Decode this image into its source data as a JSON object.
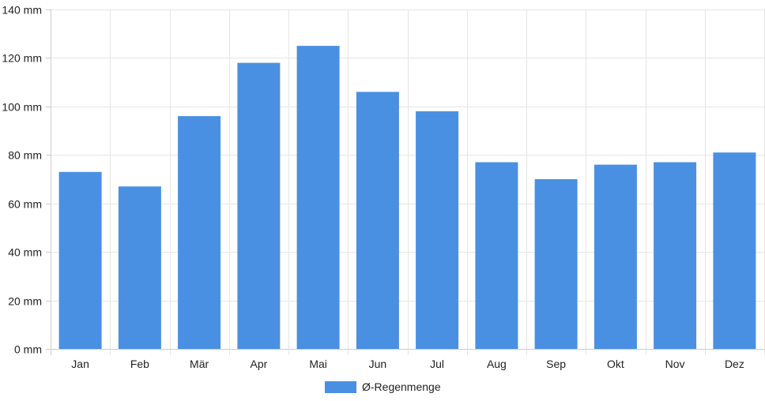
{
  "chart_data": {
    "type": "bar",
    "categories": [
      "Jan",
      "Feb",
      "Mär",
      "Apr",
      "Mai",
      "Jun",
      "Jul",
      "Aug",
      "Sep",
      "Okt",
      "Nov",
      "Dez"
    ],
    "series": [
      {
        "name": "Ø-Regenmenge",
        "values": [
          73,
          67,
          96,
          118,
          125,
          106,
          98,
          77,
          70,
          76,
          77,
          81
        ],
        "color": "#4a90e2"
      }
    ],
    "y_ticks": [
      "0 mm",
      "20 mm",
      "40 mm",
      "60 mm",
      "80 mm",
      "100 mm",
      "120 mm",
      "140 mm"
    ],
    "ylim": [
      0,
      140
    ],
    "y_step": 20,
    "grid": true,
    "legend": "bottom-center"
  }
}
